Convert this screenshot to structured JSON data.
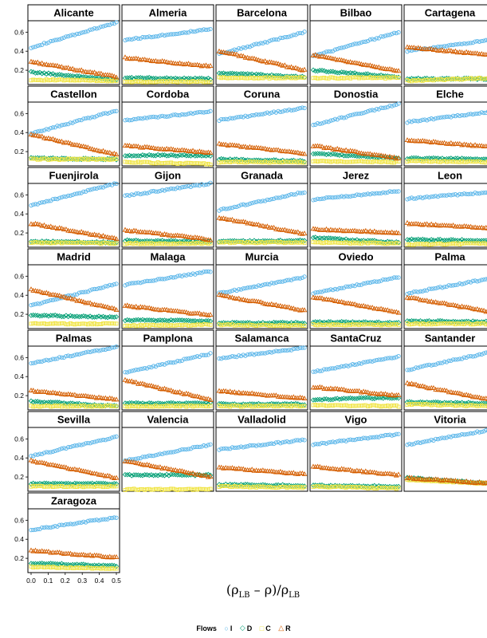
{
  "chart_data": {
    "type": "scatter",
    "title": "",
    "xlabel": "(ρLB – ρ)/ρLB",
    "xlabel_parts": {
      "open": "(ρ",
      "sub1": "LB",
      "mid": " – ρ)/ρ",
      "sub2": "LB"
    },
    "xlim": [
      0,
      0.5
    ],
    "ylim": [
      0.05,
      0.72
    ],
    "xticks": [
      "0.0",
      "0.1",
      "0.2",
      "0.3",
      "0.4",
      "0.5"
    ],
    "yticks": [
      "0.2",
      "0.4",
      "0.6"
    ],
    "legend": {
      "title": "Flows",
      "entries": [
        {
          "name": "I",
          "symbol": "○",
          "color": "#56B4E9"
        },
        {
          "name": "D",
          "symbol": "◇",
          "color": "#009E73"
        },
        {
          "name": "C",
          "symbol": "□",
          "color": "#F0E442"
        },
        {
          "name": "R",
          "symbol": "△",
          "color": "#D55E00"
        }
      ]
    },
    "series_colors": {
      "I": "#56B4E9",
      "D": "#009E73",
      "C": "#F0E442",
      "R": "#D55E00"
    },
    "x": [
      0.0,
      0.5
    ],
    "panels": [
      {
        "city": "Alicante",
        "I": [
          0.44,
          0.7
        ],
        "D": [
          0.18,
          0.1
        ],
        "C": [
          0.1,
          0.09
        ],
        "R": [
          0.29,
          0.13
        ]
      },
      {
        "city": "Almeria",
        "I": [
          0.52,
          0.63
        ],
        "D": [
          0.12,
          0.11
        ],
        "C": [
          0.08,
          0.08
        ],
        "R": [
          0.33,
          0.24
        ]
      },
      {
        "city": "Barcelona",
        "I": [
          0.37,
          0.6
        ],
        "D": [
          0.17,
          0.13
        ],
        "C": [
          0.12,
          0.12
        ],
        "R": [
          0.4,
          0.2
        ]
      },
      {
        "city": "Bilbao",
        "I": [
          0.35,
          0.6
        ],
        "D": [
          0.2,
          0.13
        ],
        "C": [
          0.12,
          0.12
        ],
        "R": [
          0.36,
          0.19
        ]
      },
      {
        "city": "Cartagena",
        "I": [
          0.4,
          0.52
        ],
        "D": [
          0.11,
          0.11
        ],
        "C": [
          0.09,
          0.12
        ],
        "R": [
          0.44,
          0.36
        ]
      },
      {
        "city": "Castellon",
        "I": [
          0.39,
          0.63
        ],
        "D": [
          0.13,
          0.12
        ],
        "C": [
          0.12,
          0.12
        ],
        "R": [
          0.38,
          0.17
        ]
      },
      {
        "city": "Cordoba",
        "I": [
          0.53,
          0.62
        ],
        "D": [
          0.16,
          0.16
        ],
        "C": [
          0.09,
          0.07
        ],
        "R": [
          0.26,
          0.19
        ]
      },
      {
        "city": "Coruna",
        "I": [
          0.53,
          0.66
        ],
        "D": [
          0.12,
          0.1
        ],
        "C": [
          0.09,
          0.09
        ],
        "R": [
          0.28,
          0.18
        ]
      },
      {
        "city": "Donostia",
        "I": [
          0.48,
          0.7
        ],
        "D": [
          0.18,
          0.13
        ],
        "C": [
          0.1,
          0.09
        ],
        "R": [
          0.26,
          0.13
        ]
      },
      {
        "city": "Elche",
        "I": [
          0.51,
          0.62
        ],
        "D": [
          0.13,
          0.12
        ],
        "C": [
          0.1,
          0.09
        ],
        "R": [
          0.32,
          0.25
        ]
      },
      {
        "city": "Fuenjirola",
        "I": [
          0.49,
          0.72
        ],
        "D": [
          0.11,
          0.1
        ],
        "C": [
          0.1,
          0.09
        ],
        "R": [
          0.3,
          0.14
        ]
      },
      {
        "city": "Gijon",
        "I": [
          0.59,
          0.72
        ],
        "D": [
          0.12,
          0.11
        ],
        "C": [
          0.09,
          0.09
        ],
        "R": [
          0.23,
          0.13
        ]
      },
      {
        "city": "Granada",
        "I": [
          0.44,
          0.63
        ],
        "D": [
          0.11,
          0.12
        ],
        "C": [
          0.1,
          0.1
        ],
        "R": [
          0.36,
          0.19
        ]
      },
      {
        "city": "Jerez",
        "I": [
          0.55,
          0.64
        ],
        "D": [
          0.15,
          0.1
        ],
        "C": [
          0.1,
          0.09
        ],
        "R": [
          0.24,
          0.2
        ]
      },
      {
        "city": "Leon",
        "I": [
          0.56,
          0.63
        ],
        "D": [
          0.13,
          0.12
        ],
        "C": [
          0.08,
          0.09
        ],
        "R": [
          0.3,
          0.25
        ]
      },
      {
        "city": "Madrid",
        "I": [
          0.29,
          0.52
        ],
        "D": [
          0.19,
          0.17
        ],
        "C": [
          0.1,
          0.1
        ],
        "R": [
          0.46,
          0.25
        ]
      },
      {
        "city": "Malaga",
        "I": [
          0.51,
          0.65
        ],
        "D": [
          0.14,
          0.13
        ],
        "C": [
          0.08,
          0.09
        ],
        "R": [
          0.29,
          0.19
        ]
      },
      {
        "city": "Murcia",
        "I": [
          0.42,
          0.59
        ],
        "D": [
          0.11,
          0.11
        ],
        "C": [
          0.09,
          0.08
        ],
        "R": [
          0.4,
          0.24
        ]
      },
      {
        "city": "Oviedo",
        "I": [
          0.42,
          0.59
        ],
        "D": [
          0.12,
          0.11
        ],
        "C": [
          0.09,
          0.09
        ],
        "R": [
          0.38,
          0.22
        ]
      },
      {
        "city": "Palma",
        "I": [
          0.42,
          0.58
        ],
        "D": [
          0.13,
          0.12
        ],
        "C": [
          0.1,
          0.1
        ],
        "R": [
          0.38,
          0.22
        ]
      },
      {
        "city": "Palmas",
        "I": [
          0.54,
          0.71
        ],
        "D": [
          0.14,
          0.09
        ],
        "C": [
          0.09,
          0.09
        ],
        "R": [
          0.25,
          0.16
        ]
      },
      {
        "city": "Pamplona",
        "I": [
          0.44,
          0.64
        ],
        "D": [
          0.12,
          0.12
        ],
        "C": [
          0.09,
          0.09
        ],
        "R": [
          0.36,
          0.16
        ]
      },
      {
        "city": "Salamanca",
        "I": [
          0.59,
          0.7
        ],
        "D": [
          0.11,
          0.11
        ],
        "C": [
          0.09,
          0.09
        ],
        "R": [
          0.25,
          0.17
        ]
      },
      {
        "city": "SantaCruz",
        "I": [
          0.45,
          0.61
        ],
        "D": [
          0.16,
          0.18
        ],
        "C": [
          0.1,
          0.09
        ],
        "R": [
          0.29,
          0.2
        ]
      },
      {
        "city": "Santander",
        "I": [
          0.47,
          0.66
        ],
        "D": [
          0.13,
          0.12
        ],
        "C": [
          0.11,
          0.09
        ],
        "R": [
          0.33,
          0.15
        ]
      },
      {
        "city": "Sevilla",
        "I": [
          0.42,
          0.62
        ],
        "D": [
          0.13,
          0.13
        ],
        "C": [
          0.1,
          0.1
        ],
        "R": [
          0.37,
          0.19
        ]
      },
      {
        "city": "Valencia",
        "I": [
          0.37,
          0.54
        ],
        "D": [
          0.22,
          0.22
        ],
        "C": [
          0.07,
          0.07
        ],
        "R": [
          0.37,
          0.2
        ]
      },
      {
        "city": "Valladolid",
        "I": [
          0.49,
          0.59
        ],
        "D": [
          0.12,
          0.11
        ],
        "C": [
          0.1,
          0.09
        ],
        "R": [
          0.3,
          0.23
        ]
      },
      {
        "city": "Vigo",
        "I": [
          0.54,
          0.65
        ],
        "D": [
          0.11,
          0.1
        ],
        "C": [
          0.1,
          0.08
        ],
        "R": [
          0.31,
          0.22
        ]
      },
      {
        "city": "Vitoria",
        "I": [
          0.54,
          0.7
        ],
        "D": [
          0.19,
          0.13
        ],
        "C": [
          0.17,
          0.13
        ],
        "R": [
          0.19,
          0.13
        ]
      },
      {
        "city": "Zaragoza",
        "I": [
          0.5,
          0.63
        ],
        "D": [
          0.15,
          0.12
        ],
        "C": [
          0.11,
          0.09
        ],
        "R": [
          0.28,
          0.21
        ]
      }
    ]
  }
}
